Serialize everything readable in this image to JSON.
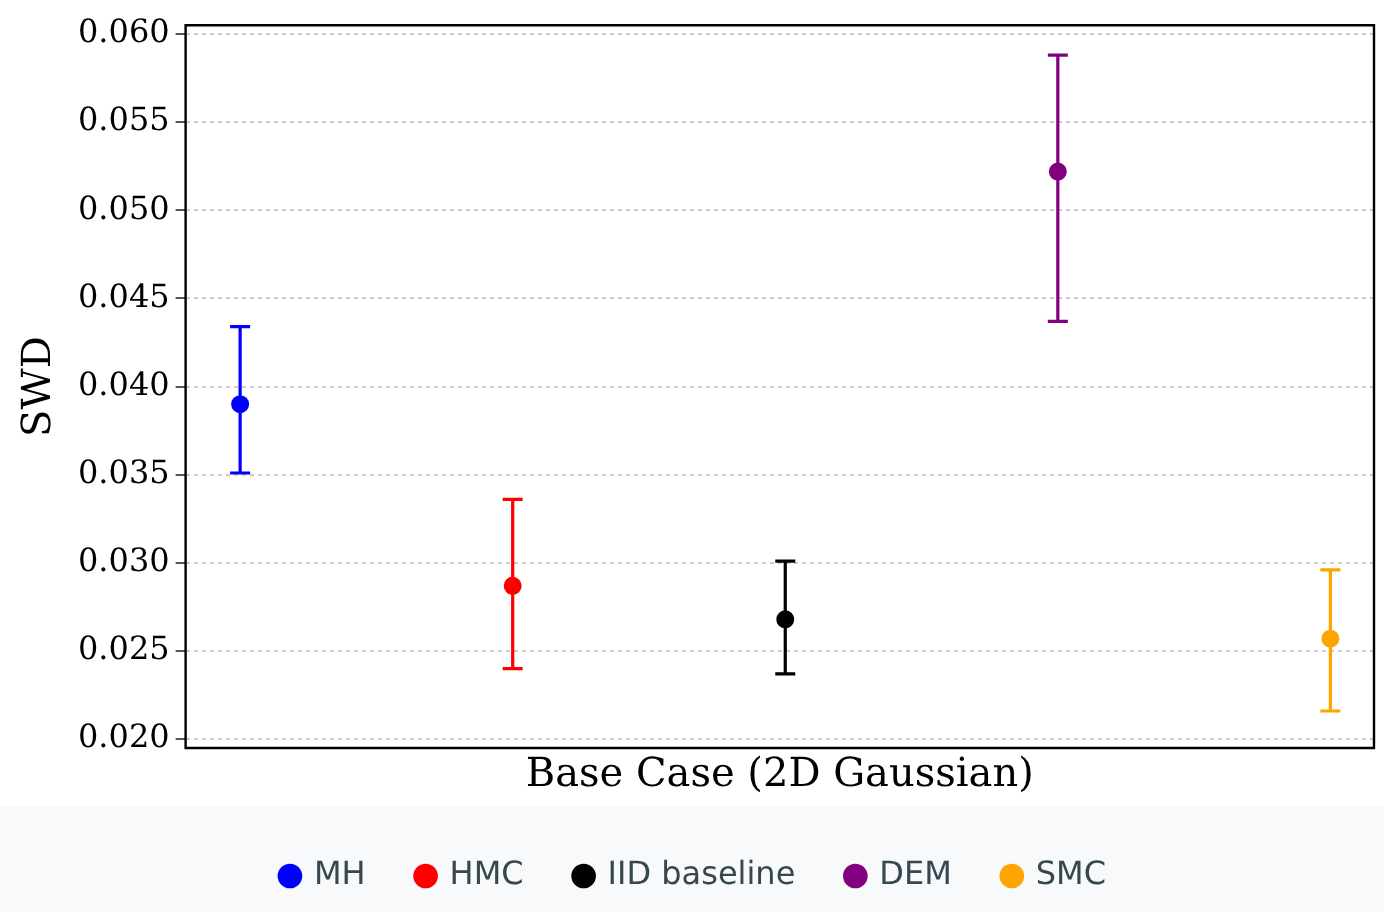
{
  "chart_data": {
    "type": "scatter",
    "xlabel": "Base Case (2D Gaussian)",
    "ylabel": "SWD",
    "categories": [
      null,
      null,
      null,
      null,
      null
    ],
    "ylim": [
      0.0195,
      0.0605
    ],
    "yticks": [
      {
        "value": 0.02,
        "label": "0.020"
      },
      {
        "value": 0.025,
        "label": "0.025"
      },
      {
        "value": 0.03,
        "label": "0.030"
      },
      {
        "value": 0.035,
        "label": "0.035"
      },
      {
        "value": 0.04,
        "label": "0.040"
      },
      {
        "value": 0.045,
        "label": "0.045"
      },
      {
        "value": 0.05,
        "label": "0.050"
      },
      {
        "value": 0.055,
        "label": "0.055"
      },
      {
        "value": 0.06,
        "label": "0.060"
      }
    ],
    "grid": "y",
    "legend": "bottom",
    "marker": "circle",
    "series": [
      {
        "name": "MH",
        "color": "#0000ff",
        "values": [
          0.039,
          null,
          null,
          null,
          null
        ],
        "errors": [
          [
            0.0351,
            0.0434
          ],
          null,
          null,
          null,
          null
        ]
      },
      {
        "name": "HMC",
        "color": "#ff0000",
        "values": [
          null,
          0.0287,
          null,
          null,
          null
        ],
        "errors": [
          null,
          [
            0.024,
            0.0336
          ],
          null,
          null,
          null
        ]
      },
      {
        "name": "IID baseline",
        "color": "#000000",
        "values": [
          null,
          null,
          0.0268,
          null,
          null
        ],
        "errors": [
          null,
          null,
          [
            0.0237,
            0.0301
          ],
          null,
          null
        ]
      },
      {
        "name": "DEM",
        "color": "#800080",
        "values": [
          null,
          null,
          null,
          0.0522,
          null
        ],
        "errors": [
          null,
          null,
          null,
          [
            0.0437,
            0.0588
          ],
          null
        ]
      },
      {
        "name": "SMC",
        "color": "#ffa500",
        "values": [
          null,
          null,
          null,
          null,
          0.0257
        ],
        "errors": [
          null,
          null,
          null,
          null,
          [
            0.0216,
            0.0296
          ]
        ]
      }
    ]
  }
}
